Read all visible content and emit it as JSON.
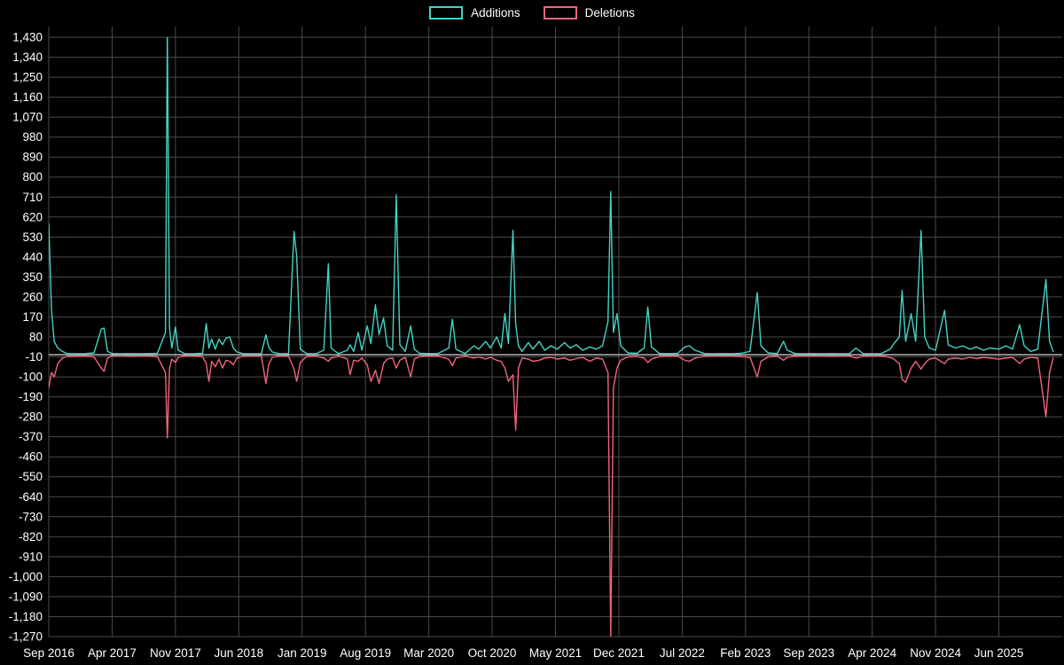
{
  "legend": {
    "items": [
      {
        "label": "Additions",
        "color": "#44d3c5"
      },
      {
        "label": "Deletions",
        "color": "#f1657b"
      }
    ]
  },
  "chart_data": {
    "type": "line",
    "title": "",
    "background": "#000000",
    "grid_color": "#4a4a4a",
    "zero_line_color": "#c8c8c8",
    "text_color": "#ffffff",
    "x_axis": {
      "domain": [
        0,
        112
      ],
      "tick_months": [
        0,
        7,
        14,
        21,
        28,
        35,
        42,
        49,
        56,
        63,
        70,
        77,
        84,
        91,
        98,
        105
      ],
      "tick_labels": [
        "Sep 2016",
        "Apr 2017",
        "Nov 2017",
        "Jun 2018",
        "Jan 2019",
        "Aug 2019",
        "Mar 2020",
        "Oct 2020",
        "May 2021",
        "Dec 2021",
        "Jul 2022",
        "Feb 2023",
        "Sep 2023",
        "Apr 2024",
        "Nov 2024",
        "Jun 2025"
      ]
    },
    "y_axis": {
      "min": -1270,
      "max": 1430,
      "tick_values": [
        1430,
        1340,
        1250,
        1160,
        1070,
        980,
        890,
        800,
        710,
        620,
        530,
        440,
        350,
        260,
        170,
        80,
        -10,
        -100,
        -190,
        -280,
        -370,
        -460,
        -550,
        -640,
        -730,
        -820,
        -910,
        -1000,
        -1090,
        -1180,
        -1270
      ],
      "tick_labels": [
        "1,430",
        "1,340",
        "1,250",
        "1,160",
        "1,070",
        "980",
        "890",
        "800",
        "710",
        "620",
        "530",
        "440",
        "350",
        "260",
        "170",
        "80",
        "-10",
        "-100",
        "-190",
        "-280",
        "-370",
        "-460",
        "-550",
        "-640",
        "-730",
        "-820",
        "-910",
        "-1,000",
        "-1,090",
        "-1,180",
        "-1,270"
      ]
    },
    "x": [
      0,
      0.3,
      0.6,
      1,
      1.5,
      2,
      3,
      4,
      5,
      5.8,
      6.1,
      6.5,
      7,
      8,
      9,
      10,
      11,
      12,
      12.9,
      13.1,
      13.35,
      13.6,
      14.0,
      14.3,
      15,
      16,
      17,
      17.4,
      17.7,
      18.0,
      18.4,
      18.8,
      19.2,
      19.6,
      20.0,
      20.4,
      20.8,
      21.5,
      22.5,
      23.5,
      24.0,
      24.3,
      24.7,
      25.5,
      26.5,
      27.1,
      27.4,
      27.8,
      28.5,
      29.5,
      30.4,
      30.9,
      31.2,
      32,
      33.0,
      33.3,
      33.7,
      34.2,
      34.6,
      35.2,
      35.6,
      36.1,
      36.5,
      37.0,
      37.4,
      38.0,
      38.4,
      38.8,
      39.4,
      40.0,
      40.4,
      41,
      42,
      43,
      44.2,
      44.6,
      45.0,
      46,
      47.0,
      47.5,
      48.3,
      48.8,
      49.5,
      50.0,
      50.4,
      50.8,
      51.3,
      51.6,
      51.9,
      52.3,
      53.0,
      53.5,
      54.2,
      54.8,
      55.5,
      56.2,
      57.0,
      57.6,
      58.3,
      59.0,
      59.8,
      60.5,
      61.2,
      61.8,
      62.1,
      62.4,
      62.8,
      63.2,
      64,
      65,
      65.8,
      66.2,
      66.6,
      67.5,
      68.5,
      69.5,
      70.3,
      70.8,
      71.4,
      72.5,
      73.5,
      74.5,
      75.5,
      76.5,
      77.5,
      78.3,
      78.7,
      79.5,
      80.5,
      81.2,
      81.6,
      82.5,
      83.5,
      84.5,
      85.5,
      86.5,
      87.5,
      88.5,
      89.2,
      90,
      91,
      92,
      93.0,
      93.4,
      94.0,
      94.3,
      94.7,
      95.3,
      95.8,
      96.4,
      96.8,
      97.3,
      98.0,
      99.0,
      99.4,
      100.2,
      101.0,
      101.8,
      102.5,
      103.3,
      104.0,
      105.0,
      105.8,
      106.5,
      107.3,
      107.8,
      108.5,
      109.3,
      110.2,
      110.6,
      111.0
    ],
    "series": [
      {
        "name": "Additions",
        "color": "#44d3c5",
        "values": [
          590,
          200,
          60,
          30,
          15,
          5,
          4,
          5,
          8,
          115,
          120,
          15,
          5,
          4,
          5,
          4,
          5,
          6,
          100,
          1460,
          120,
          30,
          125,
          20,
          5,
          4,
          6,
          140,
          30,
          70,
          25,
          70,
          45,
          75,
          80,
          30,
          12,
          5,
          4,
          5,
          90,
          35,
          12,
          4,
          5,
          555,
          445,
          25,
          5,
          4,
          20,
          410,
          30,
          5,
          20,
          45,
          15,
          100,
          20,
          130,
          50,
          225,
          90,
          165,
          40,
          20,
          720,
          45,
          15,
          130,
          25,
          6,
          5,
          5,
          30,
          160,
          25,
          5,
          40,
          25,
          60,
          30,
          80,
          30,
          185,
          50,
          560,
          140,
          40,
          15,
          55,
          25,
          60,
          20,
          40,
          25,
          55,
          30,
          45,
          20,
          35,
          25,
          40,
          150,
          735,
          100,
          185,
          40,
          8,
          6,
          30,
          215,
          35,
          5,
          5,
          6,
          35,
          40,
          20,
          5,
          4,
          5,
          4,
          6,
          15,
          280,
          40,
          8,
          5,
          60,
          20,
          5,
          4,
          5,
          4,
          5,
          4,
          5,
          30,
          5,
          4,
          5,
          25,
          50,
          80,
          290,
          60,
          185,
          60,
          560,
          80,
          30,
          20,
          200,
          45,
          30,
          40,
          25,
          35,
          20,
          30,
          25,
          40,
          25,
          135,
          40,
          15,
          25,
          340,
          60,
          15
        ]
      },
      {
        "name": "Deletions",
        "color": "#f1657b",
        "values": [
          -150,
          -80,
          -100,
          -40,
          -15,
          -8,
          -6,
          -5,
          -10,
          -60,
          -75,
          -15,
          -5,
          -4,
          -6,
          -5,
          -5,
          -8,
          -80,
          -375,
          -60,
          -20,
          -35,
          -12,
          -5,
          -5,
          -8,
          -40,
          -120,
          -30,
          -55,
          -20,
          -60,
          -25,
          -30,
          -45,
          -15,
          -6,
          -5,
          -5,
          -130,
          -45,
          -12,
          -5,
          -6,
          -65,
          -120,
          -35,
          -8,
          -5,
          -15,
          -30,
          -15,
          -6,
          -20,
          -90,
          -25,
          -30,
          -15,
          -45,
          -120,
          -70,
          -130,
          -40,
          -20,
          -15,
          -60,
          -25,
          -12,
          -100,
          -20,
          -8,
          -5,
          -6,
          -20,
          -50,
          -15,
          -6,
          -15,
          -10,
          -20,
          -12,
          -25,
          -30,
          -60,
          -120,
          -90,
          -340,
          -60,
          -15,
          -20,
          -30,
          -25,
          -15,
          -12,
          -20,
          -15,
          -25,
          -18,
          -12,
          -30,
          -15,
          -20,
          -80,
          -1270,
          -150,
          -60,
          -25,
          -10,
          -8,
          -15,
          -35,
          -20,
          -8,
          -5,
          -6,
          -25,
          -30,
          -15,
          -6,
          -5,
          -5,
          -5,
          -8,
          -12,
          -100,
          -30,
          -10,
          -6,
          -25,
          -12,
          -6,
          -5,
          -5,
          -5,
          -6,
          -5,
          -5,
          -15,
          -6,
          -5,
          -5,
          -12,
          -20,
          -40,
          -110,
          -125,
          -60,
          -30,
          -65,
          -40,
          -20,
          -15,
          -40,
          -20,
          -15,
          -20,
          -12,
          -18,
          -12,
          -15,
          -20,
          -15,
          -12,
          -40,
          -20,
          -12,
          -15,
          -280,
          -80,
          -15
        ]
      }
    ]
  }
}
